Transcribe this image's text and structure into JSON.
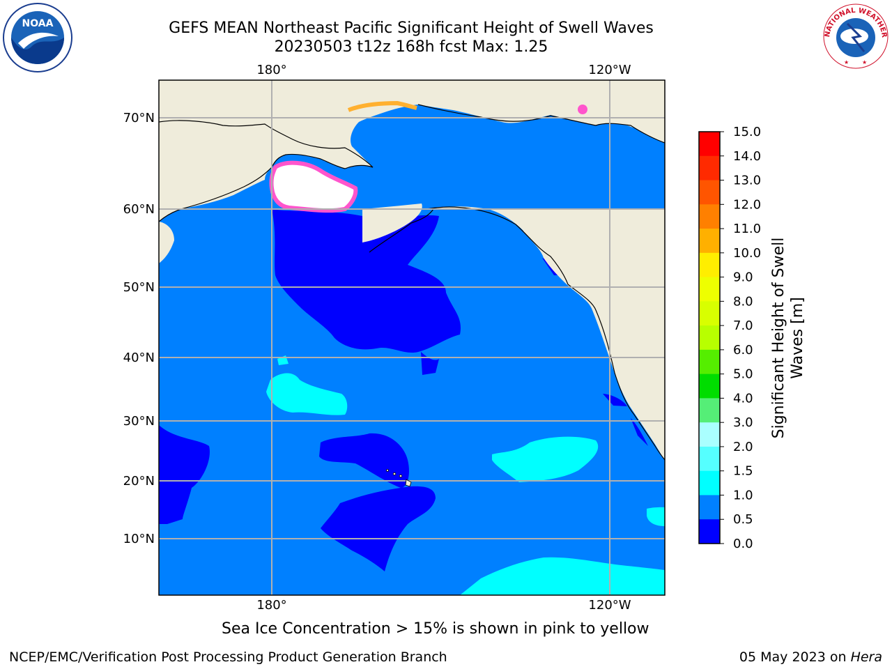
{
  "title": {
    "line1": "GEFS MEAN Northeast Pacific Significant Height of Swell Waves",
    "line2": "20230503 t12z 168h fcst   Max: 1.25"
  },
  "logos": {
    "left": {
      "icon": "noaa-logo",
      "text": "NOAA"
    },
    "right": {
      "icon": "nws-logo",
      "text": "NATIONAL WEATHER SERVICE"
    }
  },
  "map": {
    "lon_labels_top": [
      "180°",
      "120°W"
    ],
    "lon_labels_bottom": [
      "180°",
      "120°W"
    ],
    "lat_labels": [
      "70°N",
      "60°N",
      "50°N",
      "40°N",
      "30°N",
      "20°N",
      "10°N"
    ],
    "colors": {
      "land": "#efecdb",
      "ocean_0_5": "#0000fe",
      "ocean_0_5_1": "#0080ff",
      "ocean_1_1_5": "#00ffff",
      "gridline": "#b0b0b0",
      "ice_pink": "#ff55cc",
      "ice_orange": "#ffb030"
    }
  },
  "colorbar": {
    "label_line1": "Significant Height of Swell",
    "label_line2": "Waves [m]",
    "ticks": [
      "15.0",
      "14.0",
      "13.0",
      "12.0",
      "11.0",
      "10.0",
      "9.0",
      "8.0",
      "7.0",
      "6.0",
      "5.0",
      "4.0",
      "3.0",
      "2.0",
      "1.5",
      "1.0",
      "0.5",
      "0.0"
    ],
    "bins": [
      {
        "from": 14.0,
        "to": 15.0,
        "color": "#ff0000"
      },
      {
        "from": 13.0,
        "to": 14.0,
        "color": "#ff2a00"
      },
      {
        "from": 12.0,
        "to": 13.0,
        "color": "#ff5500"
      },
      {
        "from": 11.0,
        "to": 12.0,
        "color": "#ff8000"
      },
      {
        "from": 10.0,
        "to": 11.0,
        "color": "#ffb000"
      },
      {
        "from": 9.0,
        "to": 10.0,
        "color": "#ffee00"
      },
      {
        "from": 8.0,
        "to": 9.0,
        "color": "#eeff00"
      },
      {
        "from": 7.0,
        "to": 8.0,
        "color": "#d8ff00"
      },
      {
        "from": 6.0,
        "to": 7.0,
        "color": "#b8ff00"
      },
      {
        "from": 5.0,
        "to": 6.0,
        "color": "#55ee00"
      },
      {
        "from": 4.0,
        "to": 5.0,
        "color": "#00dd00"
      },
      {
        "from": 3.0,
        "to": 4.0,
        "color": "#55ee77"
      },
      {
        "from": 2.0,
        "to": 3.0,
        "color": "#aaffff"
      },
      {
        "from": 1.5,
        "to": 2.0,
        "color": "#55ffff"
      },
      {
        "from": 1.0,
        "to": 1.5,
        "color": "#00ffff"
      },
      {
        "from": 0.5,
        "to": 1.0,
        "color": "#0080ff"
      },
      {
        "from": 0.0,
        "to": 0.5,
        "color": "#0000fe"
      }
    ]
  },
  "note": "Sea Ice Concentration > 15% is shown in pink to yellow",
  "footer": {
    "left": "NCEP/EMC/Verification Post Processing Product Generation Branch",
    "right_prefix": "05 May 2023 on ",
    "right_host": "Hera"
  }
}
